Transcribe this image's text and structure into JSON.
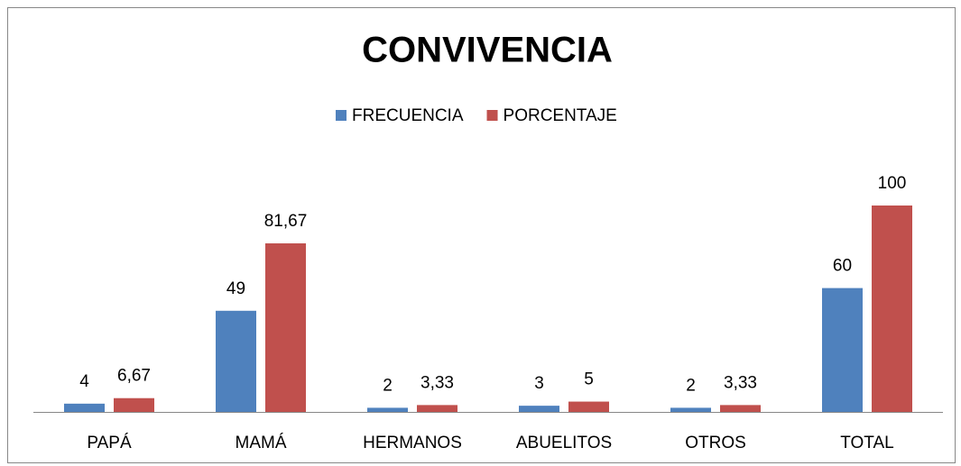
{
  "chart_data": {
    "type": "bar",
    "title": "CONVIVENCIA",
    "categories": [
      "PAPÁ",
      "MAMÁ",
      "HERMANOS",
      "ABUELITOS",
      "OTROS",
      "TOTAL"
    ],
    "series": [
      {
        "name": "FRECUENCIA",
        "color": "#4f81bd",
        "values": [
          4,
          49,
          2,
          3,
          2,
          60
        ]
      },
      {
        "name": "PORCENTAJE",
        "color": "#c0504d",
        "values": [
          6.67,
          81.67,
          3.33,
          5,
          3.33,
          100
        ],
        "value_labels": [
          "6,67",
          "81,67",
          "3,33",
          "5",
          "3,33",
          "100"
        ]
      }
    ],
    "legend": "top"
  }
}
